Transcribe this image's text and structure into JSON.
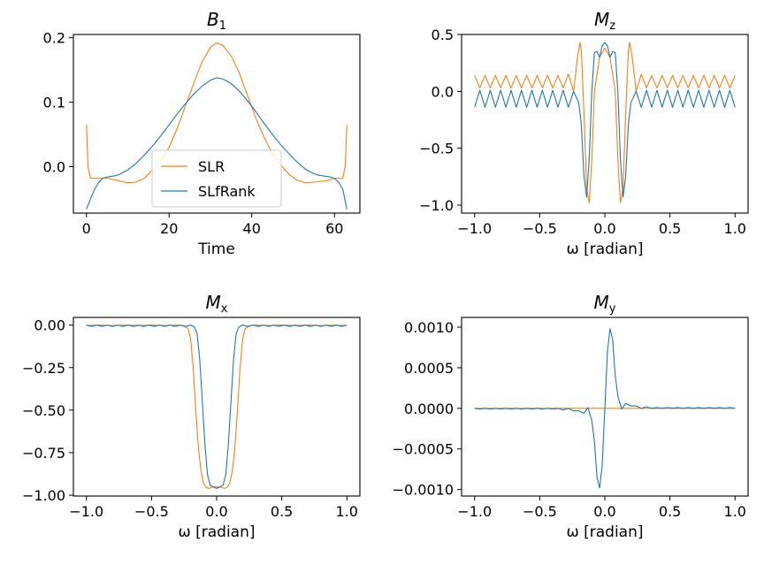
{
  "colors": {
    "SLR": "#ff7f0e",
    "SLfRank": "#1f77b4"
  },
  "chart_data": [
    {
      "id": "B1",
      "type": "line",
      "title": {
        "main": "B",
        "sub": "1"
      },
      "xlabel": "Time",
      "ylabel": "",
      "xlim": [
        -3.15,
        66.15
      ],
      "ylim": [
        -0.072,
        0.205
      ],
      "xticks": [
        0,
        20,
        40,
        60
      ],
      "xtick_labels": [
        "0",
        "20",
        "40",
        "60"
      ],
      "yticks": [
        0.0,
        0.1,
        0.2
      ],
      "ytick_labels": [
        "0.0",
        "0.1",
        "0.2"
      ],
      "legend": {
        "position": "center-bottom",
        "entries": [
          "SLR",
          "SLfRank"
        ]
      },
      "series": [
        {
          "name": "SLR",
          "color_key": "SLR",
          "x": [
            0,
            0.4,
            1,
            3,
            5,
            8,
            10,
            12,
            14,
            16,
            18,
            20,
            22,
            24,
            26,
            28,
            30,
            31.5,
            33,
            35,
            37,
            39,
            41,
            43,
            45,
            47,
            49,
            51,
            53,
            55,
            58,
            60,
            62,
            62.6,
            63
          ],
          "y": [
            0.065,
            0.0,
            -0.018,
            -0.018,
            -0.018,
            -0.022,
            -0.025,
            -0.024,
            -0.018,
            -0.005,
            0.01,
            0.03,
            0.06,
            0.095,
            0.13,
            0.163,
            0.185,
            0.192,
            0.188,
            0.172,
            0.145,
            0.11,
            0.075,
            0.045,
            0.02,
            0.003,
            -0.012,
            -0.021,
            -0.025,
            -0.024,
            -0.022,
            -0.018,
            -0.018,
            0.0,
            0.065
          ]
        },
        {
          "name": "SLfRank",
          "color_key": "SLfRank",
          "x": [
            0,
            1,
            2,
            3,
            4,
            5,
            6,
            7,
            8,
            10,
            12,
            14,
            16,
            18,
            20,
            22,
            24,
            26,
            28,
            30,
            31.5,
            33,
            35,
            37,
            39,
            41,
            43,
            45,
            47,
            49,
            51,
            53,
            55,
            56,
            57,
            58,
            59,
            60,
            61,
            62,
            63
          ],
          "y": [
            -0.066,
            -0.05,
            -0.035,
            -0.024,
            -0.018,
            -0.016,
            -0.015,
            -0.014,
            -0.012,
            -0.005,
            0.005,
            0.018,
            0.032,
            0.048,
            0.065,
            0.082,
            0.098,
            0.113,
            0.125,
            0.134,
            0.138,
            0.136,
            0.129,
            0.117,
            0.102,
            0.085,
            0.067,
            0.05,
            0.034,
            0.02,
            0.007,
            -0.004,
            -0.011,
            -0.013,
            -0.014,
            -0.015,
            -0.016,
            -0.018,
            -0.024,
            -0.035,
            -0.066
          ]
        }
      ]
    },
    {
      "id": "Mz",
      "type": "line",
      "title": {
        "main": "M",
        "sub": "z"
      },
      "xlabel": "ω [radian]",
      "ylabel": "",
      "xlim": [
        -1.1,
        1.1
      ],
      "ylim": [
        -1.07,
        0.5
      ],
      "xticks": [
        -1.0,
        -0.5,
        0.0,
        0.5,
        1.0
      ],
      "xtick_labels": [
        "−1.0",
        "−0.5",
        "0.0",
        "0.5",
        "1.0"
      ],
      "yticks": [
        -1.0,
        -0.5,
        0.0,
        0.5
      ],
      "ytick_labels": [
        "−1.0",
        "−0.5",
        "0.0",
        "0.5"
      ],
      "legend": null,
      "series": [
        {
          "name": "SLR",
          "color_key": "SLR",
          "x": [
            -1.0,
            -0.96,
            -0.92,
            -0.88,
            -0.84,
            -0.8,
            -0.76,
            -0.72,
            -0.68,
            -0.64,
            -0.6,
            -0.56,
            -0.52,
            -0.48,
            -0.44,
            -0.4,
            -0.36,
            -0.32,
            -0.28,
            -0.24,
            -0.21,
            -0.19,
            -0.18,
            -0.16,
            -0.14,
            -0.12,
            -0.1,
            -0.08,
            -0.04,
            0.0,
            0.04,
            0.08,
            0.1,
            0.12,
            0.14,
            0.16,
            0.18,
            0.19,
            0.21,
            0.24,
            0.28,
            0.32,
            0.36,
            0.4,
            0.44,
            0.48,
            0.52,
            0.56,
            0.6,
            0.64,
            0.68,
            0.72,
            0.76,
            0.8,
            0.84,
            0.88,
            0.92,
            0.96,
            1.0
          ],
          "y": [
            0.14,
            0.03,
            0.14,
            0.03,
            0.14,
            0.03,
            0.14,
            0.03,
            0.14,
            0.03,
            0.14,
            0.03,
            0.14,
            0.03,
            0.14,
            0.03,
            0.14,
            0.03,
            0.15,
            0.0,
            0.3,
            0.43,
            0.35,
            -0.2,
            -0.85,
            -0.98,
            -0.6,
            0.0,
            0.3,
            0.38,
            0.3,
            0.0,
            -0.6,
            -0.98,
            -0.85,
            -0.2,
            0.35,
            0.43,
            0.3,
            0.0,
            0.15,
            0.03,
            0.14,
            0.03,
            0.14,
            0.03,
            0.14,
            0.03,
            0.14,
            0.03,
            0.14,
            0.03,
            0.14,
            0.03,
            0.14,
            0.03,
            0.14,
            0.03,
            0.14
          ]
        },
        {
          "name": "SLfRank",
          "color_key": "SLfRank",
          "x": [
            -1.0,
            -0.96,
            -0.92,
            -0.88,
            -0.84,
            -0.8,
            -0.76,
            -0.72,
            -0.68,
            -0.64,
            -0.6,
            -0.56,
            -0.52,
            -0.48,
            -0.44,
            -0.4,
            -0.36,
            -0.32,
            -0.28,
            -0.24,
            -0.2,
            -0.18,
            -0.16,
            -0.14,
            -0.12,
            -0.1,
            -0.08,
            -0.06,
            -0.04,
            -0.02,
            0.0,
            0.02,
            0.04,
            0.06,
            0.08,
            0.1,
            0.12,
            0.14,
            0.16,
            0.18,
            0.2,
            0.24,
            0.28,
            0.32,
            0.36,
            0.4,
            0.44,
            0.48,
            0.52,
            0.56,
            0.6,
            0.64,
            0.68,
            0.72,
            0.76,
            0.8,
            0.84,
            0.88,
            0.92,
            0.96,
            1.0
          ],
          "y": [
            -0.14,
            0.01,
            -0.14,
            0.01,
            -0.14,
            0.01,
            -0.14,
            0.01,
            -0.14,
            0.01,
            -0.14,
            0.01,
            -0.14,
            0.01,
            -0.14,
            0.01,
            -0.14,
            0.01,
            -0.14,
            0.0,
            -0.1,
            -0.3,
            -0.75,
            -0.93,
            -0.6,
            0.0,
            0.34,
            0.35,
            0.3,
            0.4,
            0.43,
            0.4,
            0.3,
            0.35,
            0.34,
            0.0,
            -0.6,
            -0.93,
            -0.75,
            -0.3,
            -0.1,
            0.0,
            -0.14,
            0.01,
            -0.14,
            0.01,
            -0.14,
            0.01,
            -0.14,
            0.01,
            -0.14,
            0.01,
            -0.14,
            0.01,
            -0.14,
            0.01,
            -0.14,
            0.01,
            -0.14,
            0.01,
            -0.14
          ]
        }
      ]
    },
    {
      "id": "Mx",
      "type": "line",
      "title": {
        "main": "M",
        "sub": "x"
      },
      "xlabel": "ω [radian]",
      "ylabel": "",
      "xlim": [
        -1.1,
        1.1
      ],
      "ylim": [
        -1.005,
        0.045
      ],
      "xticks": [
        -1.0,
        -0.5,
        0.0,
        0.5,
        1.0
      ],
      "xtick_labels": [
        "−1.0",
        "−0.5",
        "0.0",
        "0.5",
        "1.0"
      ],
      "yticks": [
        0.0,
        -0.25,
        -0.5,
        -0.75,
        -1.0
      ],
      "ytick_labels": [
        "0.00",
        "−0.25",
        "−0.50",
        "−0.75",
        "−1.00"
      ],
      "legend": null,
      "series": [
        {
          "name": "SLR",
          "color_key": "SLR",
          "x": [
            -1.0,
            -0.9,
            -0.8,
            -0.7,
            -0.6,
            -0.5,
            -0.4,
            -0.3,
            -0.26,
            -0.22,
            -0.2,
            -0.18,
            -0.16,
            -0.14,
            -0.12,
            -0.1,
            -0.08,
            -0.06,
            -0.04,
            -0.02,
            0.0,
            0.02,
            0.04,
            0.06,
            0.08,
            0.1,
            0.12,
            0.14,
            0.16,
            0.18,
            0.2,
            0.22,
            0.26,
            0.3,
            0.4,
            0.5,
            0.6,
            0.7,
            0.8,
            0.9,
            1.0
          ],
          "y": [
            -0.003,
            0.0,
            -0.003,
            0.0,
            -0.003,
            0.0,
            -0.003,
            0.0,
            -0.003,
            -0.02,
            -0.08,
            -0.25,
            -0.5,
            -0.72,
            -0.86,
            -0.93,
            -0.955,
            -0.96,
            -0.955,
            -0.95,
            -0.952,
            -0.95,
            -0.955,
            -0.96,
            -0.955,
            -0.93,
            -0.86,
            -0.72,
            -0.5,
            -0.25,
            -0.08,
            -0.02,
            -0.003,
            0.0,
            -0.003,
            0.0,
            -0.003,
            0.0,
            -0.003,
            0.0,
            -0.003
          ]
        },
        {
          "name": "SLfRank",
          "color_key": "SLfRank",
          "x": [
            -1.0,
            -0.96,
            -0.92,
            -0.88,
            -0.84,
            -0.8,
            -0.76,
            -0.72,
            -0.68,
            -0.64,
            -0.6,
            -0.56,
            -0.52,
            -0.48,
            -0.44,
            -0.4,
            -0.36,
            -0.32,
            -0.28,
            -0.24,
            -0.2,
            -0.17,
            -0.15,
            -0.13,
            -0.11,
            -0.09,
            -0.07,
            -0.05,
            -0.03,
            0.0,
            0.03,
            0.05,
            0.07,
            0.09,
            0.11,
            0.13,
            0.15,
            0.17,
            0.2,
            0.24,
            0.28,
            0.32,
            0.36,
            0.4,
            0.44,
            0.48,
            0.52,
            0.56,
            0.6,
            0.64,
            0.68,
            0.72,
            0.76,
            0.8,
            0.84,
            0.88,
            0.92,
            0.96,
            1.0
          ],
          "y": [
            0.0,
            -0.008,
            0.0,
            -0.008,
            0.0,
            -0.008,
            0.0,
            -0.008,
            0.0,
            -0.008,
            0.0,
            -0.008,
            0.0,
            -0.008,
            0.0,
            -0.008,
            0.0,
            -0.008,
            0.0,
            -0.008,
            0.0,
            -0.012,
            -0.05,
            -0.2,
            -0.45,
            -0.7,
            -0.88,
            -0.94,
            -0.95,
            -0.96,
            -0.95,
            -0.94,
            -0.88,
            -0.7,
            -0.45,
            -0.2,
            -0.05,
            -0.012,
            0.0,
            -0.008,
            0.0,
            -0.008,
            0.0,
            -0.008,
            0.0,
            -0.008,
            0.0,
            -0.008,
            0.0,
            -0.008,
            0.0,
            -0.008,
            0.0,
            -0.008,
            0.0,
            -0.008,
            0.0,
            -0.008,
            0.0
          ]
        }
      ]
    },
    {
      "id": "My",
      "type": "line",
      "title": {
        "main": "M",
        "sub": "y"
      },
      "xlabel": "ω [radian]",
      "ylabel": "",
      "xlim": [
        -1.1,
        1.1
      ],
      "ylim": [
        -0.00108,
        0.00112
      ],
      "xticks": [
        -1.0,
        -0.5,
        0.0,
        0.5,
        1.0
      ],
      "xtick_labels": [
        "−1.0",
        "−0.5",
        "0.0",
        "0.5",
        "1.0"
      ],
      "yticks": [
        0.001,
        0.0005,
        0.0,
        -0.0005,
        -0.001
      ],
      "ytick_labels": [
        "0.0010",
        "0.0005",
        "0.0000",
        "−0.0005",
        "−0.0010"
      ],
      "legend": null,
      "series": [
        {
          "name": "SLR",
          "color_key": "SLR",
          "x": [
            -1.0,
            1.0
          ],
          "y": [
            0.0,
            0.0
          ]
        },
        {
          "name": "SLfRank",
          "color_key": "SLfRank",
          "x": [
            -1.0,
            -0.96,
            -0.92,
            -0.88,
            -0.84,
            -0.8,
            -0.76,
            -0.72,
            -0.68,
            -0.64,
            -0.6,
            -0.56,
            -0.52,
            -0.48,
            -0.44,
            -0.4,
            -0.36,
            -0.32,
            -0.28,
            -0.24,
            -0.2,
            -0.16,
            -0.13,
            -0.1,
            -0.08,
            -0.06,
            -0.04,
            -0.02,
            0.0,
            0.02,
            0.04,
            0.06,
            0.08,
            0.1,
            0.13,
            0.16,
            0.2,
            0.24,
            0.28,
            0.32,
            0.36,
            0.4,
            0.44,
            0.48,
            0.52,
            0.56,
            0.6,
            0.64,
            0.68,
            0.72,
            0.76,
            0.8,
            0.84,
            0.88,
            0.92,
            0.96,
            1.0
          ],
          "y": [
            0.0,
            -1e-05,
            0.0,
            -1e-05,
            0.0,
            -1e-05,
            0.0,
            -1e-05,
            0.0,
            -1e-05,
            0.0,
            -1e-05,
            0.0,
            -1e-05,
            0.0,
            -1e-05,
            0.0,
            -2e-05,
            0.0,
            -3e-05,
            -3e-05,
            -6e-05,
            1e-05,
            -0.00015,
            -0.0004,
            -0.00085,
            -0.00098,
            -0.0007,
            0.0,
            0.0007,
            0.00098,
            0.00085,
            0.0004,
            0.00015,
            -1e-05,
            6e-05,
            3e-05,
            3e-05,
            0.0,
            2e-05,
            0.0,
            1e-05,
            0.0,
            1e-05,
            0.0,
            1e-05,
            0.0,
            1e-05,
            0.0,
            1e-05,
            0.0,
            1e-05,
            0.0,
            1e-05,
            0.0,
            1e-05,
            0.0
          ]
        }
      ]
    }
  ]
}
